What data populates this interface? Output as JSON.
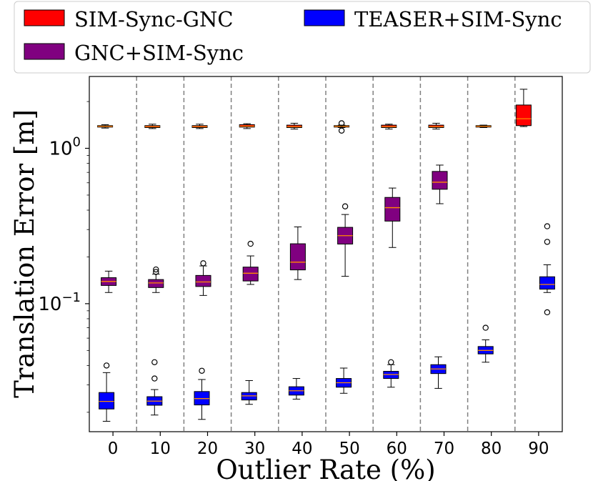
{
  "chart_data": {
    "type": "boxplot",
    "xlabel": "Outlier Rate (%)",
    "ylabel": "Translation Error [m]",
    "yscale": "log",
    "ylim": [
      0.015,
      2.9
    ],
    "categories": [
      "0",
      "10",
      "20",
      "30",
      "40",
      "50",
      "60",
      "70",
      "80",
      "90"
    ],
    "y_ticks": [
      {
        "value": 1.0,
        "base": "10",
        "exp": "0"
      },
      {
        "value": 0.1,
        "base": "10",
        "exp": "−1"
      }
    ],
    "legend": {
      "placement": "top",
      "entries": [
        {
          "label": "SIM-Sync-GNC",
          "color": "#ff0000"
        },
        {
          "label": "GNC+SIM-Sync",
          "color": "#800080"
        },
        {
          "label": "TEASER+SIM-Sync",
          "color": "#0000ff"
        }
      ]
    },
    "series": [
      {
        "name": "SIM-Sync-GNC",
        "color": "#ff0000",
        "boxes": [
          {
            "category": "0",
            "whislo": 1.35,
            "q1": 1.37,
            "med": 1.385,
            "q3": 1.4,
            "whishi": 1.42,
            "fliers": []
          },
          {
            "category": "10",
            "whislo": 1.34,
            "q1": 1.36,
            "med": 1.38,
            "q3": 1.4,
            "whishi": 1.43,
            "fliers": []
          },
          {
            "category": "20",
            "whislo": 1.34,
            "q1": 1.36,
            "med": 1.38,
            "q3": 1.4,
            "whishi": 1.43,
            "fliers": []
          },
          {
            "category": "30",
            "whislo": 1.34,
            "q1": 1.37,
            "med": 1.39,
            "q3": 1.42,
            "whishi": 1.44,
            "fliers": []
          },
          {
            "category": "40",
            "whislo": 1.33,
            "q1": 1.36,
            "med": 1.38,
            "q3": 1.41,
            "whishi": 1.45,
            "fliers": []
          },
          {
            "category": "50",
            "whislo": 1.36,
            "q1": 1.37,
            "med": 1.385,
            "q3": 1.4,
            "whishi": 1.41,
            "fliers": [
              1.3,
              1.45
            ]
          },
          {
            "category": "60",
            "whislo": 1.33,
            "q1": 1.36,
            "med": 1.38,
            "q3": 1.41,
            "whishi": 1.43,
            "fliers": []
          },
          {
            "category": "70",
            "whislo": 1.33,
            "q1": 1.36,
            "med": 1.38,
            "q3": 1.41,
            "whishi": 1.45,
            "fliers": []
          },
          {
            "category": "80",
            "whislo": 1.36,
            "q1": 1.37,
            "med": 1.385,
            "q3": 1.4,
            "whishi": 1.41,
            "fliers": []
          },
          {
            "category": "90",
            "whislo": 1.38,
            "q1": 1.4,
            "med": 1.55,
            "q3": 1.9,
            "whishi": 2.4,
            "fliers": []
          }
        ]
      },
      {
        "name": "GNC+SIM-Sync",
        "color": "#800080",
        "boxes": [
          {
            "category": "0",
            "whislo": 0.118,
            "q1": 0.131,
            "med": 0.139,
            "q3": 0.147,
            "whishi": 0.162,
            "fliers": []
          },
          {
            "category": "10",
            "whislo": 0.118,
            "q1": 0.127,
            "med": 0.136,
            "q3": 0.143,
            "whishi": 0.155,
            "fliers": [
              0.16,
              0.166
            ]
          },
          {
            "category": "20",
            "whislo": 0.113,
            "q1": 0.129,
            "med": 0.138,
            "q3": 0.152,
            "whishi": 0.175,
            "fliers": [
              0.182
            ]
          },
          {
            "category": "30",
            "whislo": 0.133,
            "q1": 0.14,
            "med": 0.157,
            "q3": 0.172,
            "whishi": 0.203,
            "fliers": [
              0.243
            ]
          },
          {
            "category": "40",
            "whislo": 0.143,
            "q1": 0.165,
            "med": 0.185,
            "q3": 0.243,
            "whishi": 0.312,
            "fliers": []
          },
          {
            "category": "50",
            "whislo": 0.15,
            "q1": 0.242,
            "med": 0.274,
            "q3": 0.31,
            "whishi": 0.375,
            "fliers": [
              0.423
            ]
          },
          {
            "category": "60",
            "whislo": 0.23,
            "q1": 0.34,
            "med": 0.415,
            "q3": 0.483,
            "whishi": 0.555,
            "fliers": []
          },
          {
            "category": "70",
            "whislo": 0.44,
            "q1": 0.545,
            "med": 0.605,
            "q3": 0.71,
            "whishi": 0.78,
            "fliers": []
          }
        ]
      },
      {
        "name": "TEASER+SIM-Sync",
        "color": "#0000ff",
        "boxes": [
          {
            "category": "0",
            "whislo": 0.0175,
            "q1": 0.021,
            "med": 0.0235,
            "q3": 0.0268,
            "whishi": 0.036,
            "fliers": [
              0.04
            ]
          },
          {
            "category": "10",
            "whislo": 0.0192,
            "q1": 0.0222,
            "med": 0.0236,
            "q3": 0.0252,
            "whishi": 0.028,
            "fliers": [
              0.033,
              0.042
            ]
          },
          {
            "category": "20",
            "whislo": 0.018,
            "q1": 0.0223,
            "med": 0.0245,
            "q3": 0.0272,
            "whishi": 0.0325,
            "fliers": [
              0.037
            ]
          },
          {
            "category": "30",
            "whislo": 0.0225,
            "q1": 0.024,
            "med": 0.0255,
            "q3": 0.0268,
            "whishi": 0.032,
            "fliers": []
          },
          {
            "category": "40",
            "whislo": 0.0243,
            "q1": 0.0258,
            "med": 0.0275,
            "q3": 0.0292,
            "whishi": 0.033,
            "fliers": []
          },
          {
            "category": "50",
            "whislo": 0.0265,
            "q1": 0.029,
            "med": 0.031,
            "q3": 0.033,
            "whishi": 0.0385,
            "fliers": []
          },
          {
            "category": "60",
            "whislo": 0.029,
            "q1": 0.033,
            "med": 0.035,
            "q3": 0.0367,
            "whishi": 0.0405,
            "fliers": [
              0.042
            ]
          },
          {
            "category": "70",
            "whislo": 0.0285,
            "q1": 0.0355,
            "med": 0.038,
            "q3": 0.0405,
            "whishi": 0.0455,
            "fliers": []
          },
          {
            "category": "80",
            "whislo": 0.042,
            "q1": 0.0475,
            "med": 0.05,
            "q3": 0.053,
            "whishi": 0.0585,
            "fliers": [
              0.07
            ]
          },
          {
            "category": "90",
            "whislo": 0.118,
            "q1": 0.124,
            "med": 0.133,
            "q3": 0.149,
            "whishi": 0.178,
            "fliers": [
              0.088,
              0.25,
              0.315
            ]
          }
        ]
      }
    ]
  }
}
